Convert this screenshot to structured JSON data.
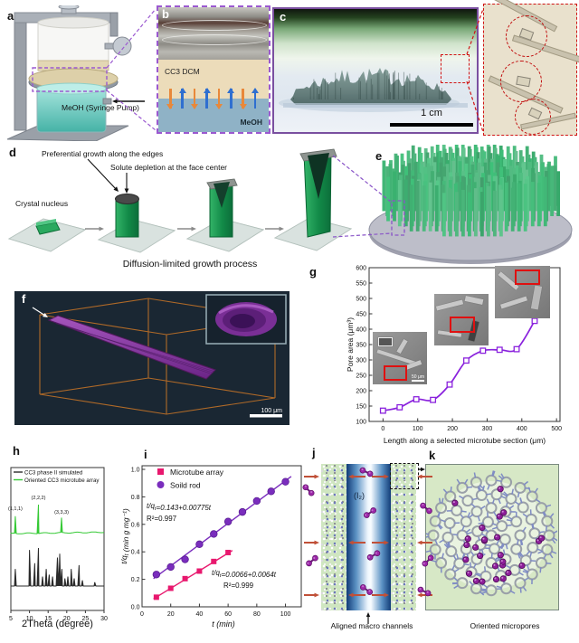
{
  "panels": {
    "a": {
      "letter": "a",
      "pump_label": "MeOH (Syringe Pump)"
    },
    "b": {
      "letter": "b",
      "top_label": "CC3 DCM",
      "bottom_label": "MeOH"
    },
    "c": {
      "letter": "c",
      "scalebar": "1 cm"
    },
    "d": {
      "letter": "d",
      "annotation_edges": "Preferential growth along the edges",
      "annotation_center": "Solute depletion at the face center",
      "annotation_nucleus": "Crystal nucleus",
      "caption": "Diffusion-limited growth process"
    },
    "e": {
      "letter": "e"
    },
    "f": {
      "letter": "f",
      "scalebar": "100 μm"
    },
    "g": {
      "letter": "g",
      "inset_scalebar": "50 μm"
    },
    "h": {
      "letter": "h"
    },
    "i": {
      "letter": "i"
    },
    "j": {
      "letter": "j",
      "i2_label": "(I₂)",
      "caption": "Aligned macro channels"
    },
    "k": {
      "letter": "k",
      "caption": "Oriented micropores"
    }
  },
  "chart_data": [
    {
      "id": "g",
      "type": "scatter",
      "x": [
        0,
        48,
        96,
        144,
        192,
        240,
        288,
        336,
        385,
        437
      ],
      "y": [
        135,
        146,
        172,
        170,
        220,
        298,
        330,
        333,
        335,
        427
      ],
      "xlabel": "Length along a selected microtube section (μm)",
      "ylabel": "Pore area (μm³)",
      "xlim": [
        -40,
        510
      ],
      "ylim": [
        100,
        600
      ],
      "xticks": [
        0,
        100,
        200,
        300,
        400,
        500
      ],
      "yticks": [
        100,
        150,
        200,
        250,
        300,
        350,
        400,
        450,
        500,
        550,
        600
      ],
      "line_color": "#8a22dd",
      "smooth": true,
      "grid": false,
      "inset_scalebar": "50 μm"
    },
    {
      "id": "h",
      "type": "line",
      "xlabel": "2Theta (degree)",
      "xlim": [
        5,
        30
      ],
      "xticks": [
        5,
        10,
        15,
        20,
        25,
        30
      ],
      "grid": false,
      "legend_position": "top-left",
      "peak_labels": [
        {
          "text": "(1,1,1)",
          "x": 6.2
        },
        {
          "text": "(2,2,2)",
          "x": 12.4
        },
        {
          "text": "(3,3,3)",
          "x": 18.6
        }
      ],
      "series": [
        {
          "name": "CC3 phase II simulated",
          "color": "#2b2b2b",
          "peaks": [
            [
              6.2,
              0.45
            ],
            [
              10.0,
              0.95
            ],
            [
              11.4,
              0.6
            ],
            [
              12.4,
              1.0
            ],
            [
              13.5,
              0.25
            ],
            [
              14.5,
              0.45
            ],
            [
              15.3,
              0.3
            ],
            [
              16.2,
              0.25
            ],
            [
              17.5,
              0.75
            ],
            [
              18.1,
              0.85
            ],
            [
              18.7,
              0.45
            ],
            [
              19.5,
              0.2
            ],
            [
              20.3,
              0.25
            ],
            [
              21.2,
              0.45
            ],
            [
              22.0,
              0.2
            ],
            [
              23.3,
              0.55
            ],
            [
              24.2,
              0.15
            ],
            [
              27.5,
              0.1
            ]
          ]
        },
        {
          "name": "Oriented CC3 microtube array",
          "color": "#35c935",
          "peaks": [
            [
              6.2,
              0.6
            ],
            [
              12.4,
              1.0
            ],
            [
              18.6,
              0.55
            ]
          ]
        }
      ]
    },
    {
      "id": "i",
      "type": "scatter",
      "xlabel": "t (min)",
      "ylabel": "t/q_t (min g mg⁻¹)",
      "xlim": [
        0,
        111
      ],
      "ylim": [
        0,
        1.02
      ],
      "xticks": [
        0,
        20,
        40,
        60,
        80,
        100
      ],
      "yticks": [
        0.0,
        0.2,
        0.4,
        0.6,
        0.8,
        1.0
      ],
      "grid": false,
      "legend_position": "top-left",
      "series": [
        {
          "name": "Microtube array",
          "color": "#e8186e",
          "marker": "square",
          "x": [
            10,
            20,
            30,
            40,
            50,
            60
          ],
          "y": [
            0.07,
            0.135,
            0.205,
            0.26,
            0.33,
            0.395
          ],
          "fit": {
            "intercept": 0.0066,
            "slope": 0.0064,
            "range": [
              8,
              63
            ]
          },
          "equation": "t/q_t=0.0066+0.0064t",
          "r2": "R²=0.999"
        },
        {
          "name": "Soild rod",
          "color": "#7a2dbd",
          "marker": "circle",
          "x": [
            10,
            20,
            30,
            40,
            50,
            60,
            70,
            80,
            90,
            100
          ],
          "y": [
            0.235,
            0.29,
            0.345,
            0.455,
            0.53,
            0.62,
            0.69,
            0.77,
            0.84,
            0.91
          ],
          "fit": {
            "intercept": 0.143,
            "slope": 0.00775,
            "range": [
              8,
              104
            ]
          },
          "equation": "t/q_t=0.143+0.00775t",
          "r2": "R²=0.997"
        }
      ]
    }
  ]
}
